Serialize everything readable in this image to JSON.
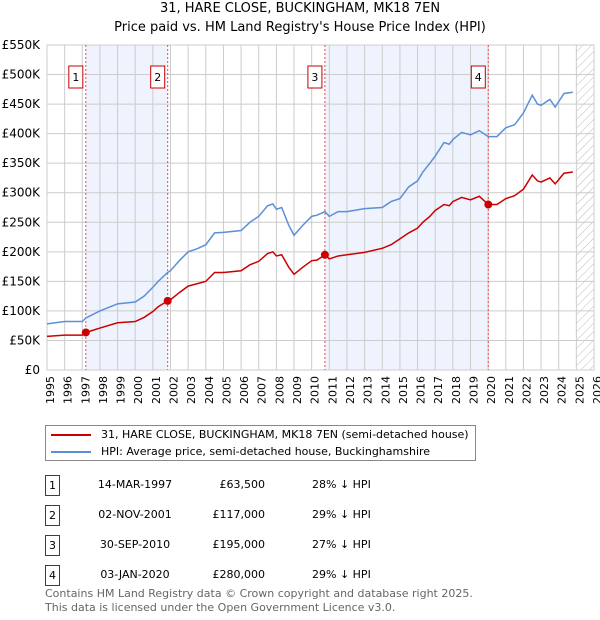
{
  "title": "31, HARE CLOSE, BUCKINGHAM, MK18 7EN",
  "subtitle": "Price paid vs. HM Land Registry's House Price Index (HPI)",
  "legend": [
    {
      "label": "31, HARE CLOSE, BUCKINGHAM, MK18 7EN (semi-detached house)",
      "color": "#cc0000"
    },
    {
      "label": "HPI: Average price, semi-detached house, Buckinghamshire",
      "color": "#5b8fd6"
    }
  ],
  "sales": [
    {
      "num": "1",
      "date": "14-MAR-1997",
      "price": "£63,500",
      "hpi": "28% ↓ HPI",
      "x": 1997.2,
      "y": 63.5
    },
    {
      "num": "2",
      "date": "02-NOV-2001",
      "price": "£117,000",
      "hpi": "29% ↓ HPI",
      "x": 2001.84,
      "y": 117
    },
    {
      "num": "3",
      "date": "30-SEP-2010",
      "price": "£195,000",
      "hpi": "27% ↓ HPI",
      "x": 2010.75,
      "y": 195
    },
    {
      "num": "4",
      "date": "03-JAN-2020",
      "price": "£280,000",
      "hpi": "29% ↓ HPI",
      "x": 2020.01,
      "y": 280
    }
  ],
  "footer": [
    "Contains HM Land Registry data © Crown copyright and database right 2025.",
    "This data is licensed under the Open Government Licence v3.0."
  ],
  "chart_data": {
    "type": "line",
    "xlim": [
      1995,
      2026
    ],
    "ylim": [
      0,
      550
    ],
    "x_ticks": [
      "1995",
      "1996",
      "1997",
      "1998",
      "1999",
      "2000",
      "2001",
      "2002",
      "2003",
      "2004",
      "2005",
      "2006",
      "2007",
      "2008",
      "2009",
      "2010",
      "2011",
      "2012",
      "2013",
      "2014",
      "2015",
      "2016",
      "2017",
      "2018",
      "2019",
      "2020",
      "2021",
      "2022",
      "2023",
      "2024",
      "2025",
      "2026"
    ],
    "y_ticks": [
      {
        "v": 0,
        "label": "£0"
      },
      {
        "v": 50,
        "label": "£50K"
      },
      {
        "v": 100,
        "label": "£100K"
      },
      {
        "v": 150,
        "label": "£150K"
      },
      {
        "v": 200,
        "label": "£200K"
      },
      {
        "v": 250,
        "label": "£250K"
      },
      {
        "v": 300,
        "label": "£300K"
      },
      {
        "v": 350,
        "label": "£350K"
      },
      {
        "v": 400,
        "label": "£400K"
      },
      {
        "v": 450,
        "label": "£450K"
      },
      {
        "v": 500,
        "label": "£500K"
      },
      {
        "v": 550,
        "label": "£550K"
      }
    ],
    "shaded_ranges": [
      [
        1997.2,
        2001.84
      ],
      [
        2010.75,
        2020.01
      ]
    ],
    "forecast_from": 2025.0,
    "x": [
      1995,
      1996,
      1997,
      1997.2,
      1998,
      1999,
      2000,
      2000.5,
      2001,
      2001.3,
      2001.84,
      2002,
      2002.5,
      2003,
      2003.5,
      2004,
      2004.5,
      2005,
      2006,
      2006.5,
      2007,
      2007.5,
      2007.8,
      2008,
      2008.3,
      2008.7,
      2009,
      2009.5,
      2010,
      2010.3,
      2010.75,
      2011,
      2011.5,
      2012,
      2013,
      2014,
      2014.5,
      2015,
      2015.5,
      2016,
      2016.3,
      2016.7,
      2017,
      2017.5,
      2017.8,
      2018,
      2018.5,
      2019,
      2019.5,
      2020.01,
      2020.5,
      2021,
      2021.5,
      2022,
      2022.5,
      2022.8,
      2023,
      2023.5,
      2023.8,
      2024.3,
      2024.8
    ],
    "series": [
      {
        "name": "HPI",
        "values": [
          78,
          82,
          82,
          88,
          100,
          112,
          115,
          125,
          140,
          150,
          165,
          168,
          185,
          200,
          205,
          212,
          232,
          233,
          236,
          250,
          260,
          278,
          281,
          272,
          275,
          245,
          228,
          245,
          260,
          262,
          268,
          260,
          268,
          268,
          273,
          275,
          285,
          290,
          310,
          320,
          335,
          350,
          362,
          385,
          382,
          390,
          402,
          398,
          405,
          395,
          395,
          410,
          415,
          435,
          465,
          450,
          448,
          458,
          445,
          468,
          470
        ]
      },
      {
        "name": "Property",
        "values": [
          57,
          59,
          59,
          63.5,
          71,
          80,
          82,
          89,
          99,
          107,
          117,
          119,
          131,
          142,
          146,
          150,
          165,
          165,
          168,
          178,
          184,
          197,
          200,
          193,
          195,
          174,
          162,
          174,
          185,
          186,
          195,
          188,
          193,
          195,
          199,
          206,
          212,
          222,
          232,
          240,
          250,
          260,
          270,
          280,
          278,
          285,
          292,
          288,
          294,
          280,
          280,
          290,
          295,
          306,
          330,
          320,
          318,
          325,
          315,
          333,
          335
        ]
      }
    ]
  }
}
